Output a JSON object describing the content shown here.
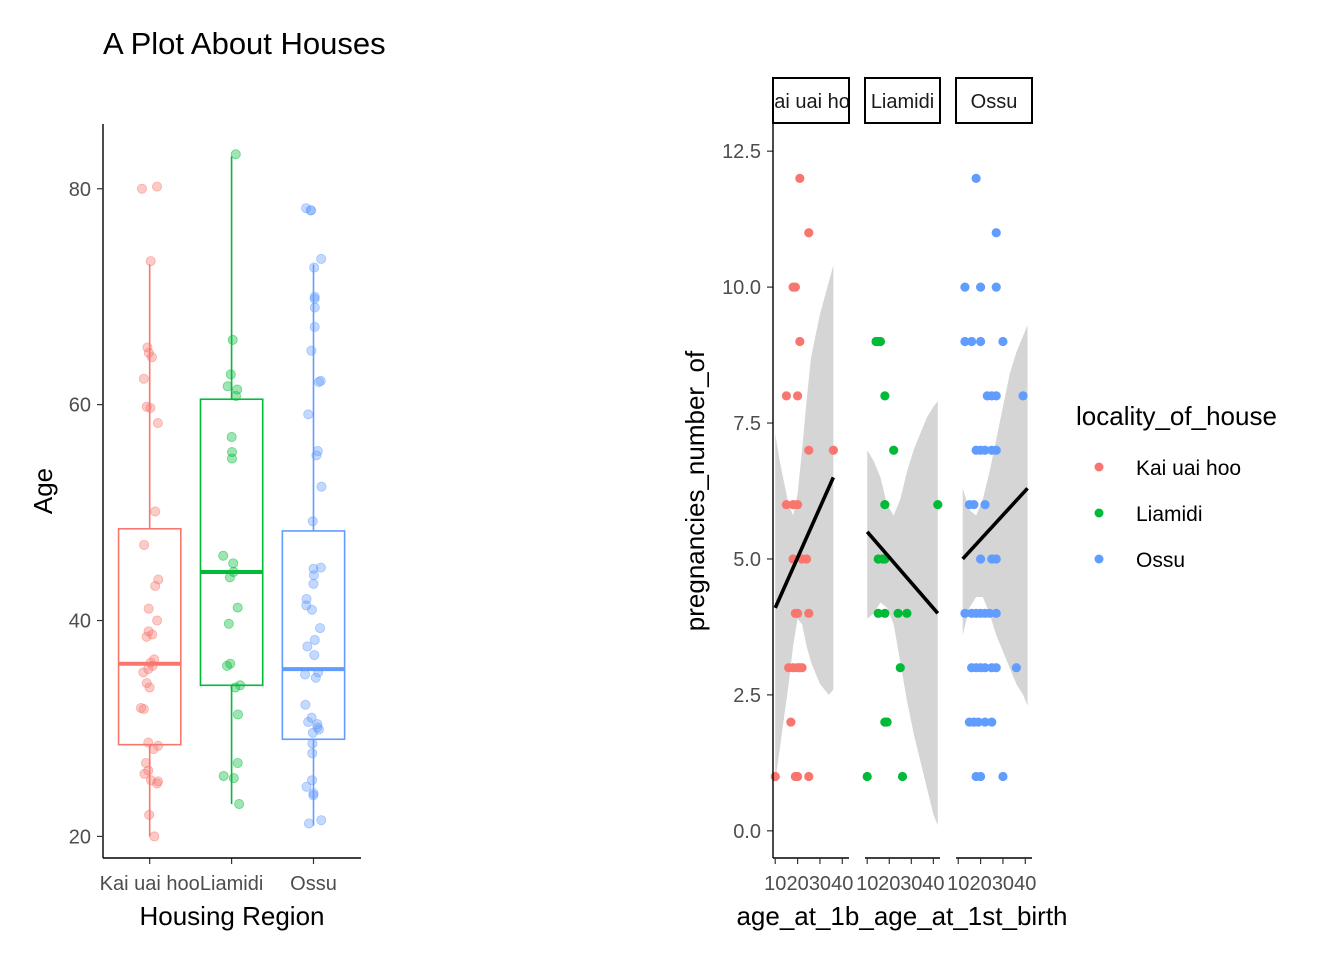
{
  "chart_data": [
    {
      "type": "box",
      "title": "A Plot About Houses",
      "xlabel": "Housing Region",
      "ylabel": "Age",
      "categories": [
        "Kai uai hoo",
        "Liamidi",
        "Ossu"
      ],
      "colors": [
        "#F8766D",
        "#00BA38",
        "#619CFF"
      ],
      "ylim": [
        18,
        86
      ],
      "yticks": [
        20,
        40,
        60,
        80
      ],
      "boxes": [
        {
          "q1": 28.5,
          "median": 36,
          "q3": 48.5,
          "whisker_low": 20,
          "whisker_high": 73,
          "points": [
            80.2,
            80,
            73.3,
            65.3,
            64.8,
            64.4,
            62.4,
            59.8,
            59.7,
            58.3,
            50.1,
            47,
            43.8,
            43.2,
            41.1,
            40,
            39,
            38.7,
            38.5,
            36.4,
            36.1,
            35.8,
            35.5,
            35.2,
            34.2,
            33.8,
            31.9,
            31.8,
            28.7,
            28.4,
            28.1,
            26.8,
            26.1,
            25.8,
            25.2,
            25.1,
            24.9,
            22,
            20
          ]
        },
        {
          "q1": 34,
          "median": 44.5,
          "q3": 60.5,
          "whisker_low": 23,
          "whisker_high": 83,
          "points": [
            83.2,
            66,
            62.8,
            61.7,
            61.4,
            60.8,
            57,
            55.6,
            55,
            46,
            45.3,
            44.5,
            44,
            41.2,
            39.7,
            36,
            35.8,
            34,
            33.8,
            31.3,
            26.8,
            25.6,
            25.4,
            23
          ]
        },
        {
          "q1": 29,
          "median": 35.5,
          "q3": 48.3,
          "whisker_low": 21,
          "whisker_high": 73,
          "points": [
            78.2,
            78,
            78,
            73.5,
            72.7,
            70,
            69.8,
            69,
            67.2,
            65,
            62.2,
            62.1,
            59.1,
            55.7,
            55.3,
            52.4,
            49.2,
            44.9,
            44.8,
            44.2,
            43.4,
            42,
            41.4,
            41,
            39.3,
            38.2,
            37.6,
            36.8,
            35.2,
            35,
            34.7,
            32.2,
            31,
            30.6,
            30.4,
            30.1,
            29.9,
            29.6,
            28.6,
            27.7,
            25.2,
            24.6,
            24,
            23.8,
            21.5,
            21.2
          ]
        }
      ]
    },
    {
      "type": "scatter",
      "facets": [
        "Kai uai hoo",
        "Liamidi",
        "Ossu"
      ],
      "xlabel": "age_at_1b_age_at_1st_birth",
      "ylabel": "pregnancies_number_of",
      "xlim": [
        9,
        43
      ],
      "xticks": [
        10,
        20,
        30,
        40
      ],
      "ylim": [
        -0.5,
        13
      ],
      "yticks": [
        0.0,
        2.5,
        5.0,
        7.5,
        10.0,
        12.5
      ],
      "ytick_labels": [
        "0.0",
        "2.5",
        "5.0",
        "7.5",
        "10.0",
        "12.5"
      ],
      "legend": {
        "title": "locality_of_house",
        "entries": [
          "Kai uai hoo",
          "Liamidi",
          "Ossu"
        ],
        "position": "right"
      },
      "colors": [
        "#F8766D",
        "#00BA38",
        "#619CFF"
      ],
      "panels": [
        {
          "points": [
            [
              21,
              12
            ],
            [
              25,
              11
            ],
            [
              18,
              10
            ],
            [
              19,
              10
            ],
            [
              15,
              8
            ],
            [
              20,
              8
            ],
            [
              21,
              9
            ],
            [
              25,
              7
            ],
            [
              36,
              7
            ],
            [
              18,
              6
            ],
            [
              20,
              6
            ],
            [
              15,
              6
            ],
            [
              22,
              5
            ],
            [
              24,
              5
            ],
            [
              18,
              5
            ],
            [
              19,
              4
            ],
            [
              20,
              4
            ],
            [
              25,
              4
            ],
            [
              16,
              3
            ],
            [
              18,
              3
            ],
            [
              20,
              3
            ],
            [
              21,
              3
            ],
            [
              22,
              3
            ],
            [
              17,
              2
            ],
            [
              10,
              1
            ],
            [
              19,
              1
            ],
            [
              20,
              1
            ],
            [
              25,
              1
            ]
          ],
          "fit": {
            "x0": 10,
            "y0": 4.1,
            "x1": 36,
            "y1": 6.5
          },
          "band": [
            [
              10,
              7.3,
              0.9
            ],
            [
              12,
              6.8,
              1.5
            ],
            [
              14,
              6.4,
              2.1
            ],
            [
              16,
              6.0,
              2.7
            ],
            [
              18,
              5.8,
              3.4
            ],
            [
              20,
              6.2,
              3.9
            ],
            [
              22,
              7.0,
              3.8
            ],
            [
              24,
              7.9,
              3.4
            ],
            [
              26,
              8.7,
              3.1
            ],
            [
              28,
              9.1,
              2.9
            ],
            [
              30,
              9.5,
              2.7
            ],
            [
              32,
              9.8,
              2.6
            ],
            [
              34,
              10.1,
              2.5
            ],
            [
              36,
              10.4,
              2.6
            ]
          ]
        },
        {
          "points": [
            [
              14,
              9
            ],
            [
              15,
              9
            ],
            [
              16,
              9
            ],
            [
              18,
              8
            ],
            [
              22,
              7
            ],
            [
              18,
              6
            ],
            [
              42,
              6
            ],
            [
              15,
              5
            ],
            [
              17,
              5
            ],
            [
              18,
              5
            ],
            [
              15,
              4
            ],
            [
              18,
              4
            ],
            [
              24,
              4
            ],
            [
              28,
              4
            ],
            [
              25,
              3
            ],
            [
              18,
              2
            ],
            [
              19,
              2
            ],
            [
              10,
              1
            ],
            [
              26,
              1
            ]
          ],
          "fit": {
            "x0": 10,
            "y0": 5.5,
            "x1": 42,
            "y1": 4.0
          },
          "band": [
            [
              10,
              7.0,
              3.9
            ],
            [
              13,
              6.8,
              4.0
            ],
            [
              16,
              6.5,
              4.2
            ],
            [
              19,
              6.0,
              4.1
            ],
            [
              22,
              5.8,
              3.8
            ],
            [
              25,
              6.1,
              3.1
            ],
            [
              28,
              6.6,
              2.4
            ],
            [
              31,
              7.0,
              1.8
            ],
            [
              34,
              7.3,
              1.3
            ],
            [
              37,
              7.6,
              0.8
            ],
            [
              40,
              7.8,
              0.3
            ],
            [
              42,
              7.9,
              0.1
            ]
          ]
        },
        {
          "points": [
            [
              18,
              12
            ],
            [
              27,
              11
            ],
            [
              13,
              10
            ],
            [
              20,
              10
            ],
            [
              27,
              10
            ],
            [
              13,
              9
            ],
            [
              16,
              9
            ],
            [
              20,
              9
            ],
            [
              30,
              9
            ],
            [
              23,
              8
            ],
            [
              25,
              8
            ],
            [
              27,
              8
            ],
            [
              39,
              8
            ],
            [
              18,
              7
            ],
            [
              20,
              7
            ],
            [
              22,
              7
            ],
            [
              25,
              7
            ],
            [
              27,
              7
            ],
            [
              15,
              6
            ],
            [
              17,
              6
            ],
            [
              22,
              6
            ],
            [
              20,
              5
            ],
            [
              25,
              5
            ],
            [
              27,
              5
            ],
            [
              13,
              4
            ],
            [
              16,
              4
            ],
            [
              18,
              4
            ],
            [
              20,
              4
            ],
            [
              22,
              4
            ],
            [
              24,
              4
            ],
            [
              27,
              4
            ],
            [
              16,
              3
            ],
            [
              18,
              3
            ],
            [
              20,
              3
            ],
            [
              22,
              3
            ],
            [
              25,
              3
            ],
            [
              27,
              3
            ],
            [
              36,
              3
            ],
            [
              15,
              2
            ],
            [
              17,
              2
            ],
            [
              19,
              2
            ],
            [
              22,
              2
            ],
            [
              25,
              2
            ],
            [
              18,
              1
            ],
            [
              20,
              1
            ],
            [
              30,
              1
            ]
          ],
          "fit": {
            "x0": 12,
            "y0": 5.0,
            "x1": 41,
            "y1": 6.3
          },
          "band": [
            [
              12,
              6.3,
              3.6
            ],
            [
              15,
              5.9,
              4.1
            ],
            [
              18,
              5.8,
              4.3
            ],
            [
              21,
              6.1,
              4.3
            ],
            [
              24,
              6.6,
              4.0
            ],
            [
              27,
              7.2,
              3.6
            ],
            [
              30,
              7.8,
              3.3
            ],
            [
              33,
              8.4,
              3.0
            ],
            [
              36,
              8.8,
              2.7
            ],
            [
              39,
              9.1,
              2.5
            ],
            [
              41,
              9.3,
              2.3
            ]
          ]
        }
      ]
    }
  ]
}
